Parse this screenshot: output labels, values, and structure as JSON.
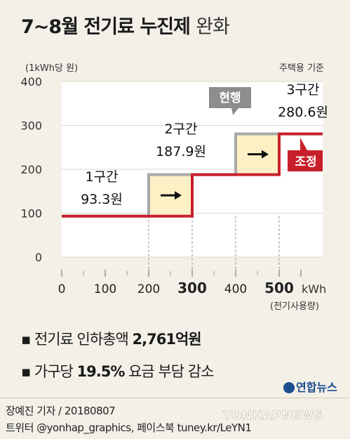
{
  "title": {
    "main": "7~8월 전기료 누진제",
    "light": "완화"
  },
  "chart_data": {
    "type": "line",
    "ylabel": "(1kWh당 원)",
    "note": "주택용 기준",
    "xlabel": "kWh",
    "xlabel_sub": "(전기사용량)",
    "xlim": [
      0,
      600
    ],
    "ylim": [
      0,
      400
    ],
    "x_ticks": [
      "0",
      "100",
      "200",
      "300",
      "400",
      "500"
    ],
    "x_ticks_emphasis": [
      "300",
      "500"
    ],
    "y_ticks": [
      "0",
      "100",
      "200",
      "300",
      "400"
    ],
    "series": [
      {
        "name": "현행",
        "color": "#a8a8a8",
        "points": [
          [
            0,
            93.3
          ],
          [
            200,
            93.3
          ],
          [
            200,
            187.9
          ],
          [
            400,
            187.9
          ],
          [
            400,
            280.6
          ],
          [
            600,
            280.6
          ]
        ]
      },
      {
        "name": "조정",
        "color": "#c8202a",
        "points": [
          [
            0,
            93.3
          ],
          [
            300,
            93.3
          ],
          [
            300,
            187.9
          ],
          [
            500,
            187.9
          ],
          [
            500,
            280.6
          ],
          [
            600,
            280.6
          ]
        ]
      }
    ],
    "tiers": [
      {
        "name": "1구간",
        "value": "93.3원",
        "rate": 93.3
      },
      {
        "name": "2구간",
        "value": "187.9원",
        "rate": 187.9
      },
      {
        "name": "3구간",
        "value": "280.6원",
        "rate": 280.6
      }
    ],
    "shift_regions": [
      [
        200,
        300
      ],
      [
        400,
        500
      ]
    ]
  },
  "bullets": [
    {
      "prefix": "전기료 인하총액 ",
      "bold": "2,761",
      "suffix": "억원"
    },
    {
      "prefix": "가구당 ",
      "bold": "19.5%",
      "suffix": " 요금 부담 감소"
    }
  ],
  "logo": "연합뉴스",
  "credit_line1": "장예진 기자 / 20180807",
  "credit_line2": "트위터 @yonhap_graphics, 페이스북 tuney.kr/LeYN1",
  "watermark": "YONHAPNEWS"
}
